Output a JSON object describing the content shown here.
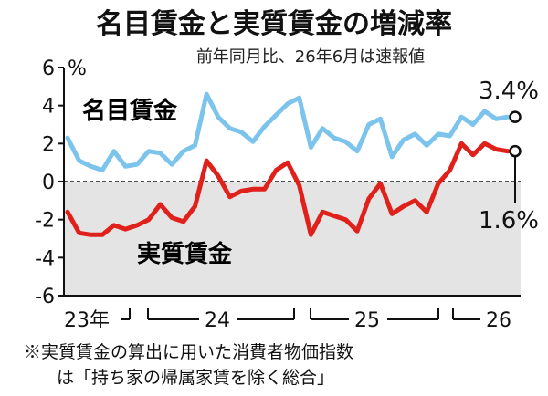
{
  "chart_data": {
    "type": "line",
    "title": "名目賃金と実質賃金の増減率",
    "subtitle": "前年同月比、26年6月は速報値",
    "ylabel": "%",
    "ylim": [
      -6,
      6
    ],
    "yticks": [
      6,
      4,
      2,
      0,
      -2,
      -4,
      -6
    ],
    "grid": false,
    "shade_below_zero": true,
    "x_labels": [
      "23年",
      "24",
      "25",
      "26"
    ],
    "series": [
      {
        "name": "名目賃金",
        "color": "#7cc4ec",
        "values": [
          2.3,
          1.1,
          0.8,
          0.6,
          1.6,
          0.8,
          0.9,
          1.6,
          1.5,
          0.9,
          1.6,
          1.9,
          4.6,
          3.4,
          2.8,
          2.6,
          2.1,
          2.9,
          3.5,
          4.1,
          4.4,
          1.8,
          2.8,
          2.3,
          2.1,
          1.6,
          3.0,
          3.3,
          1.3,
          2.2,
          2.5,
          1.9,
          2.5,
          2.4,
          3.4,
          3.0,
          3.7,
          3.3,
          3.4
        ]
      },
      {
        "name": "実質賃金",
        "color": "#e0201a",
        "values": [
          -1.6,
          -2.7,
          -2.8,
          -2.8,
          -2.3,
          -2.5,
          -2.3,
          -2.0,
          -1.2,
          -1.9,
          -2.1,
          -1.3,
          1.1,
          0.3,
          -0.8,
          -0.5,
          -0.4,
          -0.4,
          0.6,
          1.0,
          -0.2,
          -2.8,
          -1.6,
          -1.8,
          -2.0,
          -2.6,
          -0.9,
          -0.1,
          -1.7,
          -1.3,
          -1.0,
          -1.6,
          -0.1,
          0.6,
          2.0,
          1.4,
          2.0,
          1.7,
          1.6
        ]
      }
    ],
    "annotations": {
      "nominal_last": "3.4%",
      "real_last": "1.6%"
    }
  },
  "note": {
    "line1": "※実質賃金の算出に用いた消費者物価指数",
    "line2": "は「持ち家の帰属家賃を除く総合」"
  },
  "colors": {
    "nominal": "#7cc4ec",
    "real": "#e0201a",
    "shade": "#e4e4e4",
    "axis": "#111111"
  }
}
